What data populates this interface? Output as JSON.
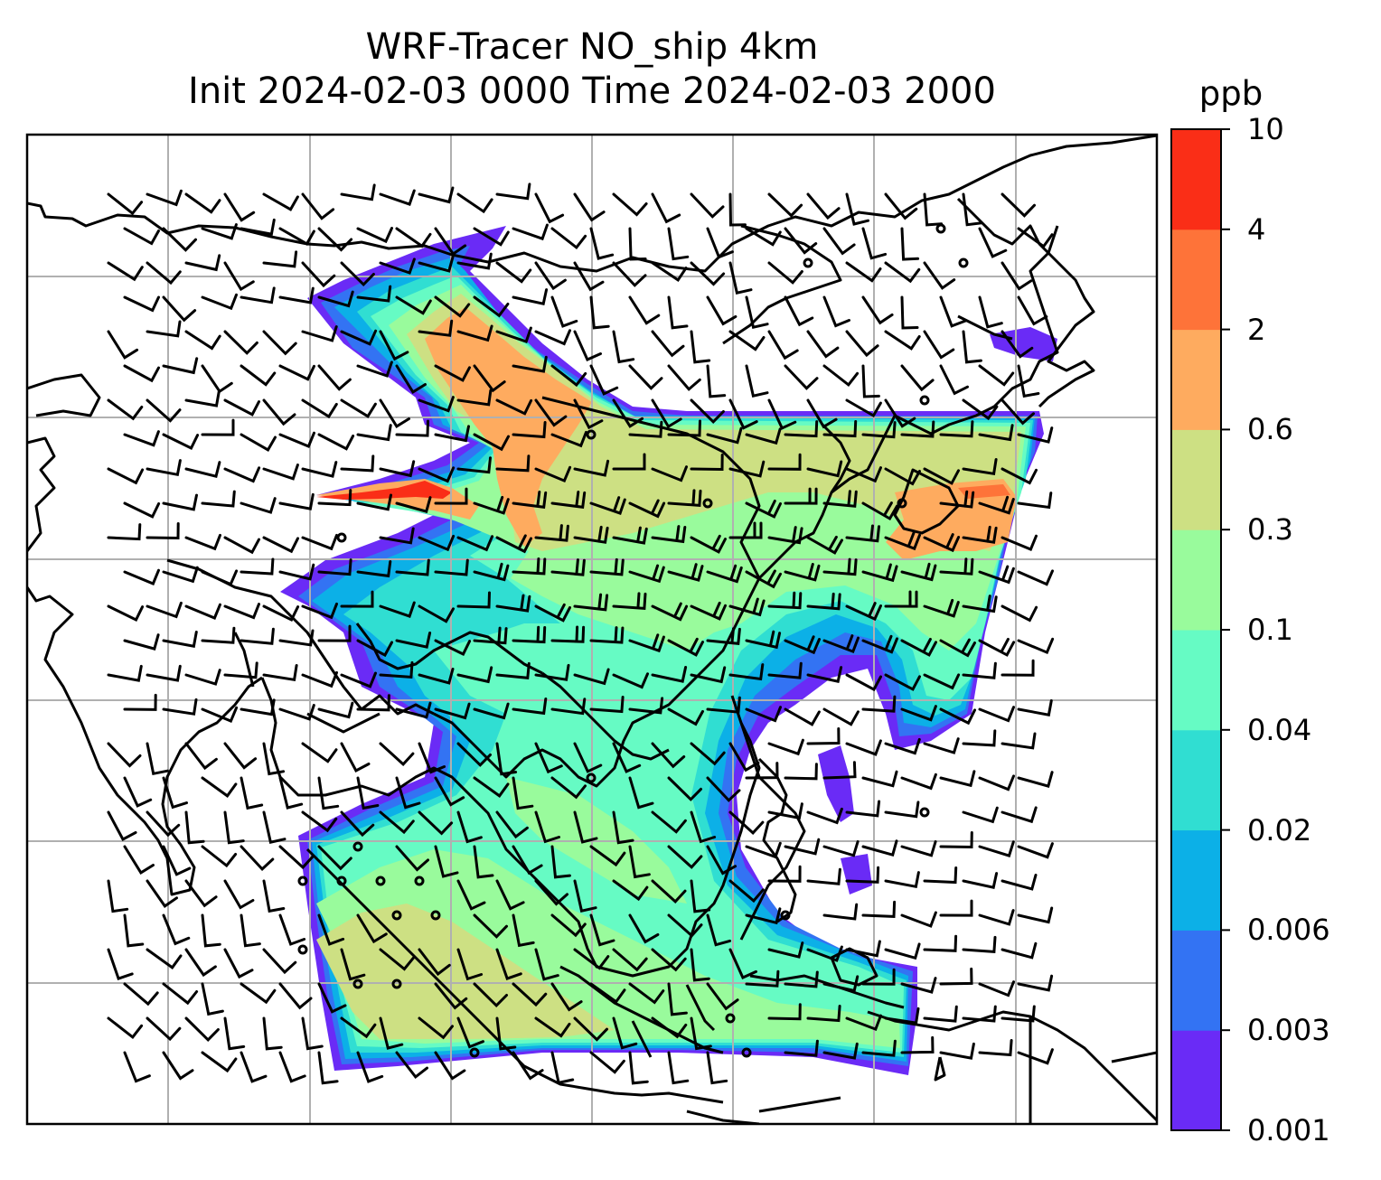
{
  "title": {
    "line1": "WRF-Tracer NO_ship 4km",
    "line2": "Init 2024-02-03 0000 Time 2024-02-03 2000"
  },
  "colorbar": {
    "unit": "ppb",
    "levels": [
      "0.001",
      "0.003",
      "0.006",
      "0.02",
      "0.04",
      "0.1",
      "0.3",
      "0.6",
      "2",
      "4",
      "10"
    ],
    "colors": [
      "#6a2bf6",
      "#3373f3",
      "#0cb0e7",
      "#30ded2",
      "#66fbc4",
      "#99fb9c",
      "#cde083",
      "#feab5f",
      "#fe7339",
      "#fa2e17"
    ]
  },
  "map": {
    "field": "NO_ship tracer concentration",
    "overlays": [
      "coastlines",
      "country borders",
      "lat/lon gridlines",
      "wind barbs"
    ]
  }
}
